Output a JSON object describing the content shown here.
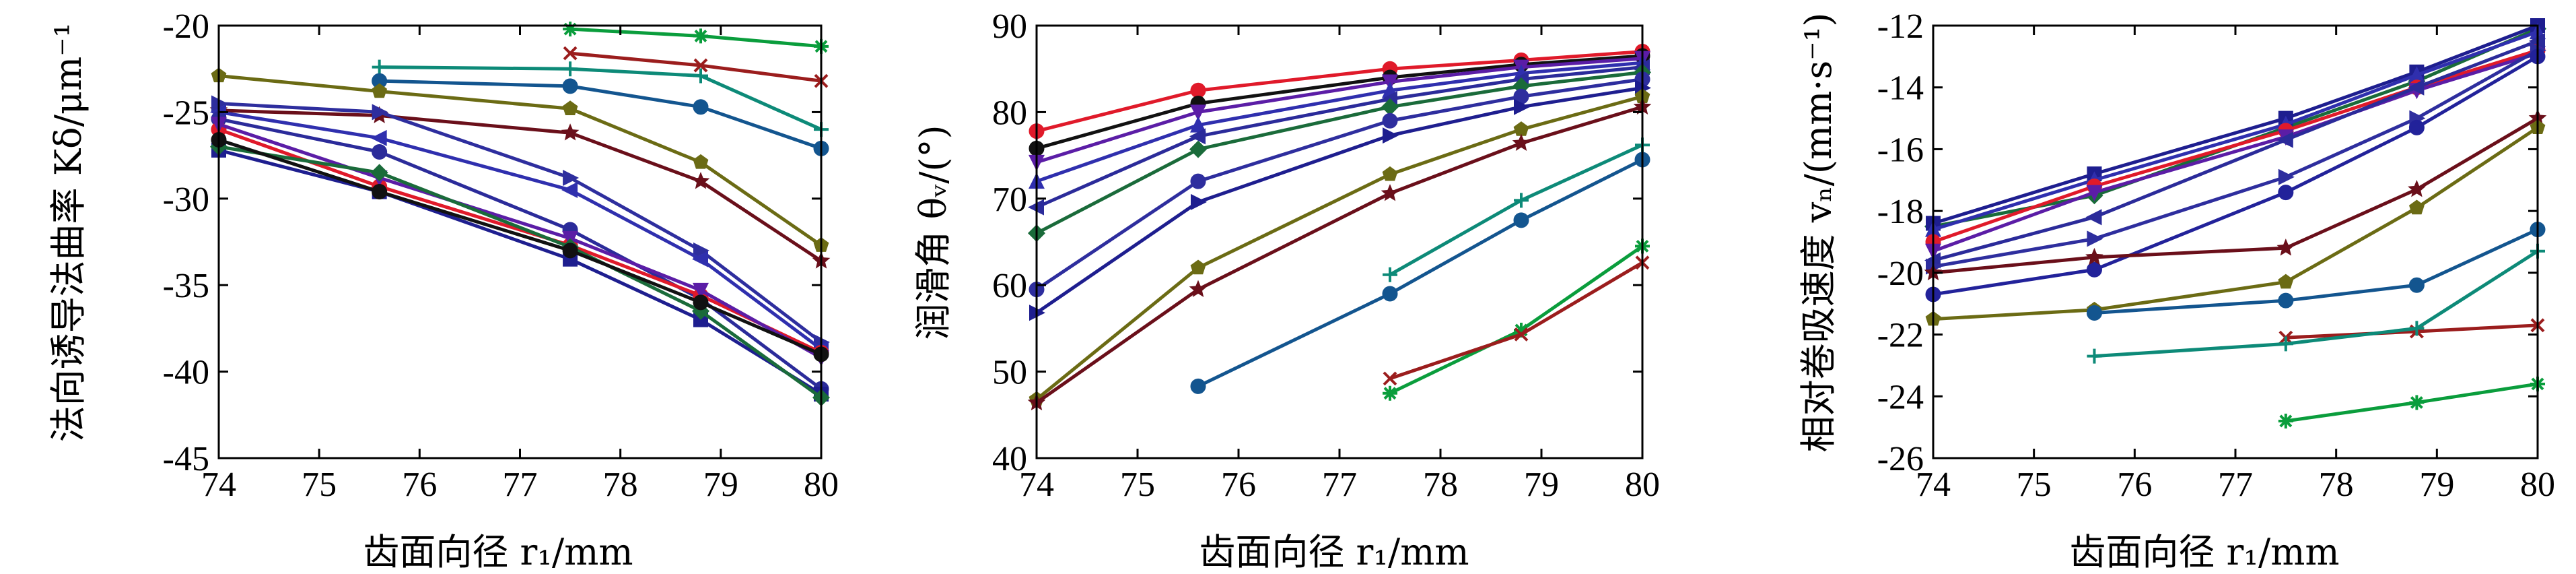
{
  "chart_data": [
    {
      "type": "line",
      "xlabel": "齿面向径 r₁/mm",
      "ylabel": "法向诱导法曲率 Kδ/μm⁻¹",
      "xlim": [
        74,
        80
      ],
      "ylim": [
        -45,
        -20
      ],
      "xticks": [
        "74",
        "75",
        "76",
        "77",
        "78",
        "79",
        "80"
      ],
      "yticks": [
        "-45",
        "-40",
        "-35",
        "-30",
        "-25",
        "-20"
      ],
      "grid": false,
      "series": [
        {
          "color": "#0a9d3c",
          "marker": "asterisk",
          "x": [
            77.5,
            78.8,
            80
          ],
          "values": [
            -20.2,
            -20.6,
            -21.2
          ]
        },
        {
          "color": "#0d8a78",
          "marker": "plus",
          "x": [
            75.6,
            77.5,
            78.8,
            80
          ],
          "values": [
            -22.4,
            -22.5,
            -22.9,
            -26.0
          ]
        },
        {
          "color": "#9b1d1d",
          "marker": "x",
          "x": [
            77.5,
            78.8,
            80
          ],
          "values": [
            -21.6,
            -22.3,
            -23.2
          ]
        },
        {
          "color": "#13558f",
          "marker": "circle",
          "x": [
            75.6,
            77.5,
            78.8,
            80
          ],
          "values": [
            -23.2,
            -23.5,
            -24.7,
            -27.1
          ]
        },
        {
          "color": "#6b6b14",
          "marker": "pentagon",
          "x": [
            74,
            75.6,
            77.5,
            78.8,
            80
          ],
          "values": [
            -22.9,
            -23.8,
            -24.8,
            -27.9,
            -32.7
          ]
        },
        {
          "color": "#6a0f1a",
          "marker": "star",
          "x": [
            74,
            75.6,
            77.5,
            78.8,
            80
          ],
          "values": [
            -24.9,
            -25.2,
            -26.2,
            -29.0,
            -33.6
          ]
        },
        {
          "color": "#2e2e9e",
          "marker": "triangle-right",
          "x": [
            74,
            75.6,
            77.5,
            78.8,
            80
          ],
          "values": [
            -24.5,
            -25.0,
            -28.8,
            -33.0,
            -38.3
          ]
        },
        {
          "color": "#2f2fae",
          "marker": "triangle-left",
          "x": [
            74,
            75.6,
            77.5,
            78.8,
            80
          ],
          "values": [
            -25.0,
            -26.5,
            -29.5,
            -33.5,
            -38.7
          ]
        },
        {
          "color": "#2b2b9a",
          "marker": "circle",
          "x": [
            74,
            75.6,
            77.5,
            78.8,
            80
          ],
          "values": [
            -25.4,
            -27.3,
            -31.8,
            -35.8,
            -41.0
          ]
        },
        {
          "color": "#1e1e8f",
          "marker": "square",
          "x": [
            74,
            75.6,
            77.5,
            78.8,
            80
          ],
          "values": [
            -27.2,
            -29.6,
            -33.5,
            -37.0,
            -41.3
          ]
        },
        {
          "color": "#e01a2a",
          "marker": "circle",
          "x": [
            74,
            75.6,
            77.5,
            78.8,
            80
          ],
          "values": [
            -26.0,
            -29.3,
            -32.7,
            -35.6,
            -38.9
          ]
        },
        {
          "color": "#5b1da6",
          "marker": "triangle-down",
          "x": [
            74,
            75.6,
            77.5,
            78.8,
            80
          ],
          "values": [
            -25.7,
            -28.8,
            -32.3,
            -35.3,
            -39.2
          ]
        },
        {
          "color": "#1a6b3a",
          "marker": "diamond",
          "x": [
            74,
            75.6,
            77.5,
            78.8,
            80
          ],
          "values": [
            -27.0,
            -28.5,
            -32.8,
            -36.5,
            -41.5
          ]
        },
        {
          "color": "#111111",
          "marker": "circle",
          "x": [
            74,
            75.6,
            77.5,
            78.8,
            80
          ],
          "values": [
            -26.6,
            -29.6,
            -33.0,
            -36.0,
            -39.0
          ]
        }
      ]
    },
    {
      "type": "line",
      "xlabel": "齿面向径 r₁/mm",
      "ylabel": "润滑角 θᵥ/(°)",
      "xlim": [
        74,
        80
      ],
      "ylim": [
        40,
        90
      ],
      "xticks": [
        "74",
        "75",
        "76",
        "77",
        "78",
        "79",
        "80"
      ],
      "yticks": [
        "40",
        "50",
        "60",
        "70",
        "80",
        "90"
      ],
      "grid": false,
      "series": [
        {
          "color": "#e01a2a",
          "marker": "circle",
          "x": [
            74,
            75.6,
            77.5,
            78.8,
            80
          ],
          "values": [
            77.8,
            82.5,
            85.0,
            86.0,
            87.0
          ]
        },
        {
          "color": "#111111",
          "marker": "circle",
          "x": [
            74,
            75.6,
            77.5,
            78.8,
            80
          ],
          "values": [
            75.8,
            81.0,
            84.0,
            85.5,
            86.5
          ]
        },
        {
          "color": "#5b1da6",
          "marker": "triangle-down",
          "x": [
            74,
            75.6,
            77.5,
            78.8,
            80
          ],
          "values": [
            74.2,
            80.0,
            83.5,
            85.2,
            86.2
          ]
        },
        {
          "color": "#2f2fae",
          "marker": "triangle-up",
          "x": [
            74,
            75.6,
            77.5,
            78.8,
            80
          ],
          "values": [
            72.0,
            78.5,
            82.5,
            84.5,
            85.7
          ]
        },
        {
          "color": "#2b2b9a",
          "marker": "triangle-left",
          "x": [
            74,
            75.6,
            77.5,
            78.8,
            80
          ],
          "values": [
            69.0,
            77.2,
            81.5,
            83.8,
            85.2
          ]
        },
        {
          "color": "#1a6b3a",
          "marker": "diamond",
          "x": [
            74,
            75.6,
            77.5,
            78.8,
            80
          ],
          "values": [
            66.0,
            75.7,
            80.6,
            83.0,
            84.6
          ]
        },
        {
          "color": "#2e2e9e",
          "marker": "circle",
          "x": [
            74,
            75.6,
            77.5,
            78.8,
            80
          ],
          "values": [
            59.5,
            72.0,
            79.0,
            81.8,
            83.8
          ]
        },
        {
          "color": "#1e1e8f",
          "marker": "triangle-right",
          "x": [
            74,
            75.6,
            77.5,
            78.8,
            80
          ],
          "values": [
            56.8,
            69.6,
            77.3,
            80.6,
            82.8
          ]
        },
        {
          "color": "#6b6b14",
          "marker": "pentagon",
          "x": [
            74,
            75.6,
            77.5,
            78.8,
            80
          ],
          "values": [
            46.8,
            62.0,
            72.8,
            78.0,
            81.8
          ]
        },
        {
          "color": "#6a0f1a",
          "marker": "star",
          "x": [
            74,
            75.6,
            77.5,
            78.8,
            80
          ],
          "values": [
            46.4,
            59.5,
            70.6,
            76.4,
            80.6
          ]
        },
        {
          "color": "#0d8a78",
          "marker": "plus",
          "x": [
            77.5,
            78.8,
            80
          ],
          "values": [
            61.2,
            69.8,
            76.2
          ]
        },
        {
          "color": "#13558f",
          "marker": "circle",
          "x": [
            75.6,
            77.5,
            78.8,
            80
          ],
          "values": [
            48.3,
            59.0,
            67.5,
            74.5
          ]
        },
        {
          "color": "#0a9d3c",
          "marker": "asterisk",
          "x": [
            77.5,
            78.8,
            80
          ],
          "values": [
            47.5,
            54.8,
            64.5
          ]
        },
        {
          "color": "#9b1d1d",
          "marker": "x",
          "x": [
            77.5,
            78.8,
            80
          ],
          "values": [
            49.2,
            54.3,
            62.6
          ]
        }
      ]
    },
    {
      "type": "line",
      "xlabel": "齿面向径 r₁/mm",
      "ylabel": "相对卷吸速度 vₙ/(mm·s⁻¹)",
      "xlim": [
        74,
        80
      ],
      "ylim": [
        -26,
        -12
      ],
      "xticks": [
        "74",
        "75",
        "76",
        "77",
        "78",
        "79",
        "80"
      ],
      "yticks": [
        "-26",
        "-24",
        "-22",
        "-20",
        "-18",
        "-16",
        "-14",
        "-12"
      ],
      "grid": false,
      "series": [
        {
          "color": "#1a6b3a",
          "marker": "diamond",
          "x": [
            74,
            75.6,
            77.5,
            78.8,
            80
          ],
          "values": [
            -18.5,
            -17.5,
            -15.3,
            -13.8,
            -12.1
          ]
        },
        {
          "color": "#1e1e8f",
          "marker": "square",
          "x": [
            74,
            75.6,
            77.5,
            78.8,
            80
          ],
          "values": [
            -18.4,
            -16.8,
            -15.0,
            -13.5,
            -12.0
          ]
        },
        {
          "color": "#2f2fae",
          "marker": "triangle-up",
          "x": [
            74,
            75.6,
            77.5,
            78.8,
            80
          ],
          "values": [
            -18.6,
            -17.0,
            -15.2,
            -13.6,
            -12.2
          ]
        },
        {
          "color": "#e01a2a",
          "marker": "circle",
          "x": [
            74,
            75.6,
            77.5,
            78.8,
            80
          ],
          "values": [
            -19.0,
            -17.2,
            -15.4,
            -14.0,
            -12.8
          ]
        },
        {
          "color": "#5b1da6",
          "marker": "triangle-down",
          "x": [
            74,
            75.6,
            77.5,
            78.8,
            80
          ],
          "values": [
            -19.3,
            -17.4,
            -15.6,
            -14.1,
            -12.9
          ]
        },
        {
          "color": "#2b2b9a",
          "marker": "triangle-left",
          "x": [
            74,
            75.6,
            77.5,
            78.8,
            80
          ],
          "values": [
            -19.6,
            -18.2,
            -15.7,
            -14.0,
            -12.5
          ]
        },
        {
          "color": "#2e2e9e",
          "marker": "triangle-right",
          "x": [
            74,
            75.6,
            77.5,
            78.8,
            80
          ],
          "values": [
            -19.8,
            -18.9,
            -16.9,
            -15.0,
            -12.8
          ]
        },
        {
          "color": "#22229a",
          "marker": "circle",
          "x": [
            74,
            75.6,
            77.5,
            78.8,
            80
          ],
          "values": [
            -20.7,
            -19.9,
            -17.4,
            -15.3,
            -13.0
          ]
        },
        {
          "color": "#6a0f1a",
          "marker": "star",
          "x": [
            74,
            75.6,
            77.5,
            78.8,
            80
          ],
          "values": [
            -20.0,
            -19.5,
            -19.2,
            -17.3,
            -15.0
          ]
        },
        {
          "color": "#6b6b14",
          "marker": "pentagon",
          "x": [
            74,
            75.6,
            77.5,
            78.8,
            80
          ],
          "values": [
            -21.5,
            -21.2,
            -20.3,
            -17.9,
            -15.3
          ]
        },
        {
          "color": "#13558f",
          "marker": "circle",
          "x": [
            75.6,
            77.5,
            78.8,
            80
          ],
          "values": [
            -21.3,
            -20.9,
            -20.4,
            -18.6
          ]
        },
        {
          "color": "#9b1d1d",
          "marker": "x",
          "x": [
            77.5,
            78.8,
            80
          ],
          "values": [
            -22.1,
            -21.9,
            -21.7
          ]
        },
        {
          "color": "#0d8a78",
          "marker": "plus",
          "x": [
            75.6,
            77.5,
            78.8,
            80
          ],
          "values": [
            -22.7,
            -22.3,
            -21.8,
            -19.3
          ]
        },
        {
          "color": "#0a9d3c",
          "marker": "asterisk",
          "x": [
            77.5,
            78.8,
            80
          ],
          "values": [
            -24.8,
            -24.2,
            -23.6
          ]
        }
      ]
    }
  ]
}
